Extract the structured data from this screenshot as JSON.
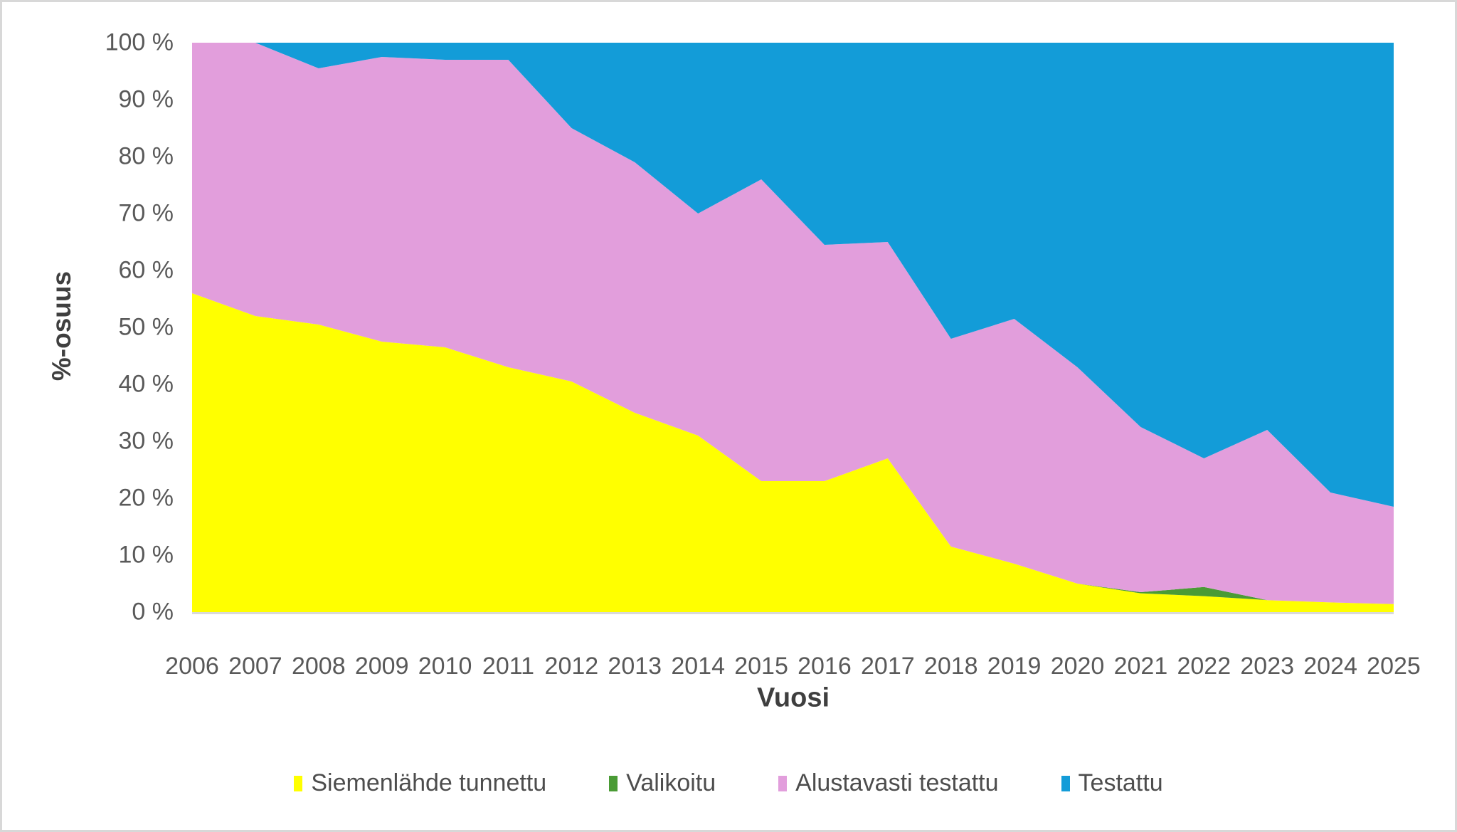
{
  "chart_data": {
    "type": "area",
    "stacking": "percent",
    "title": "",
    "xlabel": "Vuosi",
    "ylabel": "%-osuus",
    "ylim": [
      0,
      100
    ],
    "grid": false,
    "legend_position": "bottom",
    "categories": [
      "2006",
      "2007",
      "2008",
      "2009",
      "2010",
      "2011",
      "2012",
      "2013",
      "2014",
      "2015",
      "2016",
      "2017",
      "2018",
      "2019",
      "2020",
      "2021",
      "2022",
      "2023",
      "2024",
      "2025"
    ],
    "y_ticks": [
      "0 %",
      "10 %",
      "20 %",
      "30 %",
      "40 %",
      "50 %",
      "60 %",
      "70 %",
      "80 %",
      "90 %",
      "100 %"
    ],
    "series": [
      {
        "name": "Siemenlähde tunnettu",
        "color": "#FFFF00",
        "values": [
          56,
          52,
          50.5,
          47.5,
          46.5,
          43,
          40.5,
          35,
          31,
          23,
          23,
          27,
          11.5,
          8.5,
          5,
          3.3,
          2.8,
          2.1,
          1.7,
          1.4
        ]
      },
      {
        "name": "Valikoitu",
        "color": "#4A9B35",
        "values": [
          0,
          0,
          0,
          0,
          0,
          0,
          0,
          0,
          0,
          0,
          0,
          0,
          0,
          0,
          0,
          0.2,
          1.6,
          0,
          0,
          0
        ]
      },
      {
        "name": "Alustavasti testattu",
        "color": "#E29EDC",
        "values": [
          44,
          48,
          45,
          50,
          50.5,
          54,
          44.5,
          44,
          39,
          53,
          41.5,
          38,
          36.5,
          43,
          38,
          29,
          22.6,
          29.9,
          19.3,
          17.1
        ]
      },
      {
        "name": "Testattu",
        "color": "#139CD8",
        "values": [
          0,
          0,
          4.5,
          2.5,
          3,
          3,
          15,
          21,
          30,
          24,
          35.5,
          35,
          52,
          48.5,
          57,
          67.5,
          73,
          68,
          79,
          81.5
        ]
      }
    ],
    "axis_line_color": "#D9D9D9",
    "tick_text_color": "#595959",
    "title_text_color": "#3F3F3F"
  }
}
